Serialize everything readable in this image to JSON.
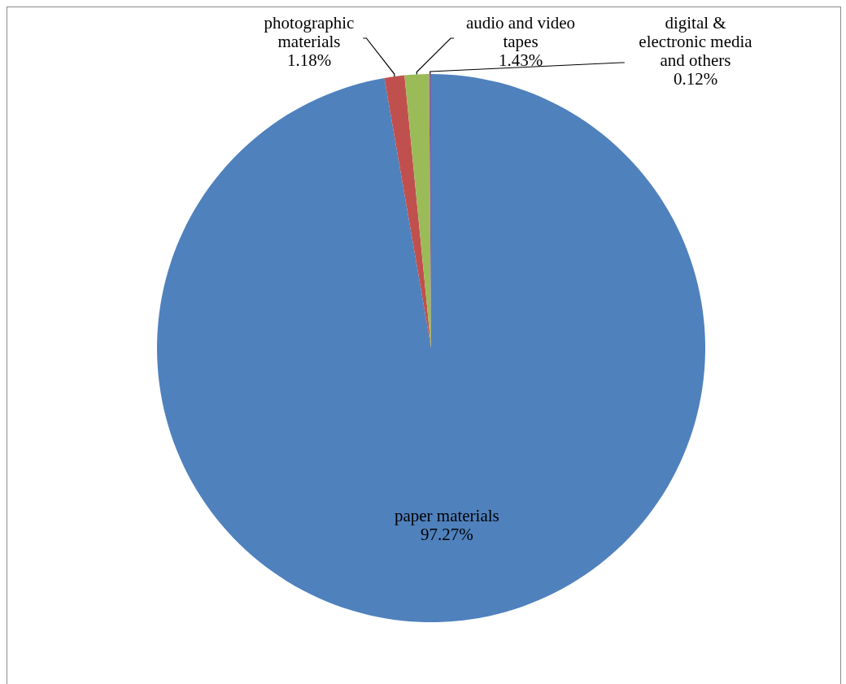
{
  "chart_data": {
    "type": "pie",
    "categories": [
      "paper materials",
      "photographic materials",
      "audio and video tapes",
      "digital & electronic media and others"
    ],
    "values": [
      97.27,
      1.18,
      1.43,
      0.12
    ],
    "value_labels": [
      "97.27%",
      "1.18%",
      "1.43%",
      "0.12%"
    ],
    "colors": [
      "#4f81bd",
      "#c0504d",
      "#9bbb59",
      "#8064a2"
    ],
    "legend": false
  }
}
